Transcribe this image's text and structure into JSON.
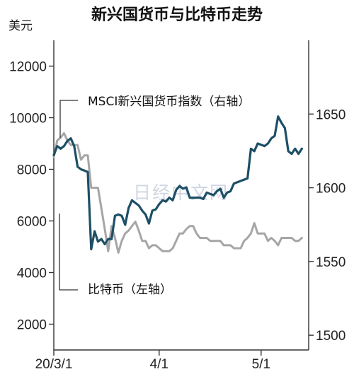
{
  "chart_data": {
    "type": "line",
    "title": "新兴国货币与比特币走势",
    "ylabel_left": "美元",
    "ylim_left": [
      1000,
      13000
    ],
    "yticks_left": [
      "2000",
      "4000",
      "6000",
      "8000",
      "10000",
      "12000"
    ],
    "ylim_right": [
      1490,
      1700
    ],
    "yticks_right": [
      "1500",
      "1550",
      "1600",
      "1650"
    ],
    "xticks": [
      "20/3/1",
      "4/1",
      "5/1"
    ],
    "x_start": "2020-03-01",
    "x_end": "2020-05-15",
    "grid": false,
    "annotations": [
      {
        "text": "MSCI新兴国货币指数（右轴）",
        "series": "MSCI新兴国货币指数"
      },
      {
        "text": "比特币（左轴）",
        "series": "比特币"
      }
    ],
    "watermark": "日经中文网",
    "series": [
      {
        "name": "比特币",
        "axis": "left",
        "color": "#1d4f66",
        "x": [
          "2020-03-01",
          "2020-03-02",
          "2020-03-03",
          "2020-03-04",
          "2020-03-05",
          "2020-03-06",
          "2020-03-07",
          "2020-03-08",
          "2020-03-09",
          "2020-03-10",
          "2020-03-11",
          "2020-03-12",
          "2020-03-13",
          "2020-03-14",
          "2020-03-15",
          "2020-03-16",
          "2020-03-17",
          "2020-03-18",
          "2020-03-19",
          "2020-03-20",
          "2020-03-21",
          "2020-03-22",
          "2020-03-23",
          "2020-03-24",
          "2020-03-25",
          "2020-03-26",
          "2020-03-27",
          "2020-03-28",
          "2020-03-29",
          "2020-03-30",
          "2020-03-31",
          "2020-04-01",
          "2020-04-02",
          "2020-04-03",
          "2020-04-04",
          "2020-04-05",
          "2020-04-06",
          "2020-04-07",
          "2020-04-08",
          "2020-04-09",
          "2020-04-10",
          "2020-04-11",
          "2020-04-12",
          "2020-04-13",
          "2020-04-14",
          "2020-04-15",
          "2020-04-16",
          "2020-04-17",
          "2020-04-18",
          "2020-04-19",
          "2020-04-20",
          "2020-04-21",
          "2020-04-22",
          "2020-04-23",
          "2020-04-24",
          "2020-04-25",
          "2020-04-26",
          "2020-04-27",
          "2020-04-28",
          "2020-04-29",
          "2020-04-30",
          "2020-05-01",
          "2020-05-02",
          "2020-05-03",
          "2020-05-04",
          "2020-05-05",
          "2020-05-06",
          "2020-05-07",
          "2020-05-08",
          "2020-05-09",
          "2020-05-10",
          "2020-05-11",
          "2020-05-12",
          "2020-05-13"
        ],
        "values": [
          8550,
          8900,
          8800,
          8900,
          9100,
          9200,
          8900,
          8100,
          8000,
          7950,
          7900,
          4900,
          5600,
          5200,
          5300,
          5100,
          5300,
          5300,
          6200,
          6250,
          6200,
          5850,
          6500,
          6800,
          6700,
          6600,
          6400,
          6250,
          5900,
          6400,
          6450,
          6650,
          6800,
          6750,
          6900,
          6800,
          7200,
          7350,
          7250,
          7300,
          6900,
          6900,
          6900,
          6900,
          6850,
          7100,
          7050,
          7000,
          7150,
          7250,
          6900,
          7100,
          7150,
          7450,
          7500,
          7550,
          7600,
          7650,
          8800,
          8700,
          9000,
          8950,
          8900,
          9000,
          9200,
          9300,
          10050,
          9800,
          9600,
          8700,
          8600,
          8800,
          8600,
          8800
        ]
      },
      {
        "name": "MSCI新兴国货币指数",
        "axis": "right",
        "color": "#a6a6a6",
        "x": [
          "2020-03-01",
          "2020-03-02",
          "2020-03-03",
          "2020-03-04",
          "2020-03-05",
          "2020-03-06",
          "2020-03-07",
          "2020-03-08",
          "2020-03-09",
          "2020-03-10",
          "2020-03-11",
          "2020-03-12",
          "2020-03-13",
          "2020-03-14",
          "2020-03-15",
          "2020-03-16",
          "2020-03-17",
          "2020-03-18",
          "2020-03-19",
          "2020-03-20",
          "2020-03-21",
          "2020-03-22",
          "2020-03-23",
          "2020-03-24",
          "2020-03-25",
          "2020-03-26",
          "2020-03-27",
          "2020-03-28",
          "2020-03-29",
          "2020-03-30",
          "2020-03-31",
          "2020-04-01",
          "2020-04-02",
          "2020-04-03",
          "2020-04-04",
          "2020-04-05",
          "2020-04-06",
          "2020-04-07",
          "2020-04-08",
          "2020-04-09",
          "2020-04-10",
          "2020-04-11",
          "2020-04-12",
          "2020-04-13",
          "2020-04-14",
          "2020-04-15",
          "2020-04-16",
          "2020-04-17",
          "2020-04-18",
          "2020-04-19",
          "2020-04-20",
          "2020-04-21",
          "2020-04-22",
          "2020-04-23",
          "2020-04-24",
          "2020-04-25",
          "2020-04-26",
          "2020-04-27",
          "2020-04-28",
          "2020-04-29",
          "2020-04-30",
          "2020-05-01",
          "2020-05-02",
          "2020-05-03",
          "2020-05-04",
          "2020-05-05",
          "2020-05-06",
          "2020-05-07",
          "2020-05-08",
          "2020-05-09",
          "2020-05-10",
          "2020-05-11",
          "2020-05-12",
          "2020-05-13"
        ],
        "values": [
          1621,
          1632,
          1634,
          1637,
          1632,
          1629,
          1629,
          1629,
          1619,
          1622,
          1622,
          1600,
          1600,
          1600,
          1586,
          1572,
          1557,
          1574,
          1566,
          1556,
          1564,
          1569,
          1571,
          1574,
          1577,
          1571,
          1564,
          1564,
          1559,
          1561,
          1561,
          1559,
          1557,
          1557,
          1557,
          1559,
          1564,
          1569,
          1569,
          1572,
          1574,
          1574,
          1569,
          1566,
          1566,
          1566,
          1564,
          1564,
          1564,
          1564,
          1561,
          1561,
          1561,
          1559,
          1559,
          1559,
          1564,
          1566,
          1569,
          1576,
          1569,
          1569,
          1569,
          1564,
          1566,
          1564,
          1561,
          1566,
          1566,
          1566,
          1566,
          1564,
          1564,
          1566
        ]
      }
    ]
  }
}
